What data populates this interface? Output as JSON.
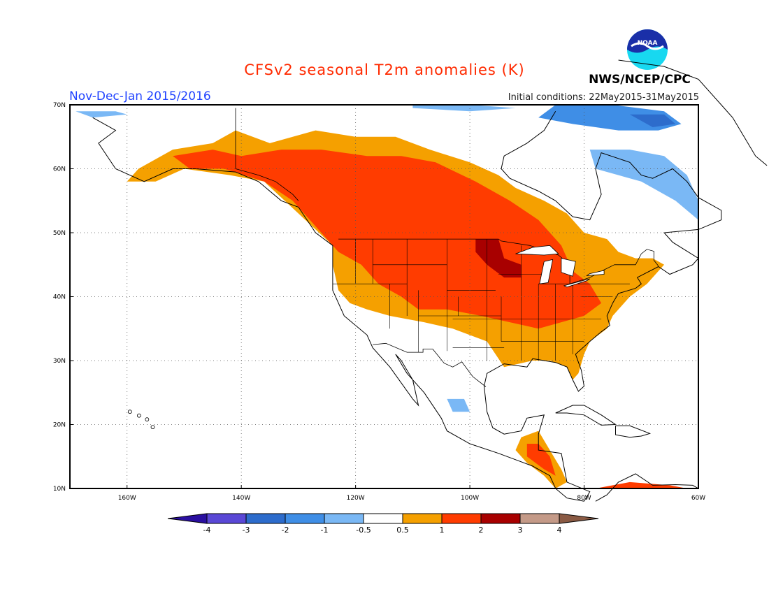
{
  "title": "CFSv2 seasonal T2m anomalies (K)",
  "period": "Nov-Dec-Jan 2015/2016",
  "initial_conditions": "Initial conditions: 22May2015-31May2015",
  "agency": "NWS/NCEP/CPC",
  "logo_text": "NOAA",
  "lat_ticks": [
    "70N",
    "60N",
    "50N",
    "40N",
    "30N",
    "20N",
    "10N"
  ],
  "lon_ticks": [
    "160W",
    "140W",
    "120W",
    "100W",
    "80W",
    "60W"
  ],
  "colorbar": {
    "labels": [
      "-4",
      "-3",
      "-2",
      "-1",
      "-0.5",
      "0.5",
      "1",
      "2",
      "3",
      "4"
    ],
    "colors": [
      "#2a0fa0",
      "#5a48d6",
      "#2d6ccc",
      "#3f8ee6",
      "#7ab8f5",
      "#ffffff",
      "#f5a000",
      "#ff3c00",
      "#a80000",
      "#c49a88",
      "#8a5a44"
    ]
  },
  "anomaly_colors": {
    "warm_0_5_1": "#f5a000",
    "warm_1_2": "#ff3c00",
    "warm_2_3": "#a80000",
    "cool_0_5_1": "#7ab8f5",
    "cool_1_2": "#3f8ee6",
    "cool_2_3": "#2d6ccc"
  }
}
